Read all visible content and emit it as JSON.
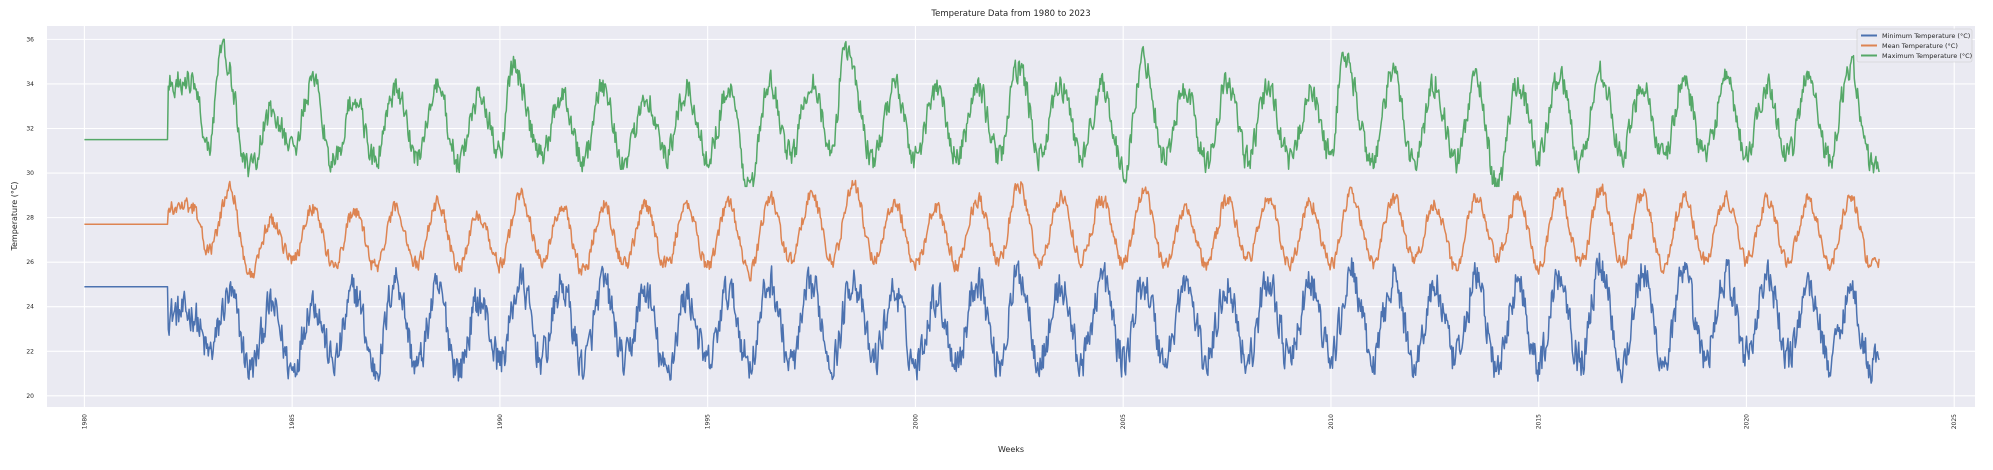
{
  "chart_data": {
    "type": "line",
    "title": "Temperature Data from 1980 to 2023",
    "xlabel": "Weeks",
    "ylabel": "Temperature (°C)",
    "xlim": [
      1979.1,
      2025.5
    ],
    "ylim": [
      19.5,
      36.6
    ],
    "x_ticks": [
      1980,
      1985,
      1990,
      1995,
      2000,
      2005,
      2010,
      2015,
      2020,
      2025
    ],
    "y_ticks": [
      20,
      22,
      24,
      26,
      28,
      30,
      32,
      34,
      36
    ],
    "grid": true,
    "style": "seaborn darkgrid",
    "legend_position": "top-right",
    "time_resolution": "weekly",
    "flat_period": [
      1980.0,
      1982.0
    ],
    "data_end": 2023.2,
    "series": [
      {
        "name": "Minimum Temperature (°C)",
        "color": "#4c72b0",
        "flat_value": 24.9,
        "mean": 23.5,
        "range": [
          20.2,
          27.2
        ],
        "summer_peaks": [
          [
            1982.6,
            24.0
          ],
          [
            1983.5,
            24.8
          ],
          [
            1984.5,
            24.3
          ],
          [
            1985.5,
            24.6
          ],
          [
            1986.5,
            25.0
          ],
          [
            1987.5,
            25.6
          ],
          [
            1988.5,
            25.0
          ],
          [
            1989.5,
            24.6
          ],
          [
            1990.5,
            25.4
          ],
          [
            1991.5,
            25.2
          ],
          [
            1992.5,
            25.3
          ],
          [
            1993.5,
            25.0
          ],
          [
            1994.5,
            24.8
          ],
          [
            1995.5,
            25.0
          ],
          [
            1996.5,
            25.4
          ],
          [
            1997.5,
            25.2
          ],
          [
            1998.5,
            25.6
          ],
          [
            1999.5,
            25.0
          ],
          [
            2000.5,
            24.8
          ],
          [
            2001.5,
            25.6
          ],
          [
            2002.5,
            25.8
          ],
          [
            2003.5,
            25.2
          ],
          [
            2004.5,
            25.6
          ],
          [
            2005.5,
            25.4
          ],
          [
            2006.5,
            25.3
          ],
          [
            2007.5,
            25.3
          ],
          [
            2008.5,
            25.5
          ],
          [
            2009.5,
            25.3
          ],
          [
            2010.5,
            25.8
          ],
          [
            2011.5,
            25.6
          ],
          [
            2012.5,
            25.2
          ],
          [
            2013.5,
            25.6
          ],
          [
            2014.5,
            25.4
          ],
          [
            2015.5,
            25.8
          ],
          [
            2016.5,
            26.2
          ],
          [
            2017.5,
            25.8
          ],
          [
            2018.5,
            25.6
          ],
          [
            2019.5,
            25.7
          ],
          [
            2020.5,
            25.6
          ],
          [
            2021.5,
            25.2
          ],
          [
            2022.5,
            25.0
          ]
        ],
        "winter_troughs": [
          [
            1983.0,
            22.2
          ],
          [
            1984.0,
            21.5
          ],
          [
            1985.0,
            21.5
          ],
          [
            1986.0,
            21.8
          ],
          [
            1987.0,
            21.5
          ],
          [
            1988.0,
            21.6
          ],
          [
            1989.0,
            21.5
          ],
          [
            1990.0,
            21.9
          ],
          [
            1991.0,
            22.0
          ],
          [
            1992.0,
            21.7
          ],
          [
            1993.0,
            21.8
          ],
          [
            1994.0,
            21.3
          ],
          [
            1995.0,
            21.7
          ],
          [
            1996.0,
            21.8
          ],
          [
            1997.0,
            21.7
          ],
          [
            1998.0,
            21.9
          ],
          [
            1999.0,
            21.9
          ],
          [
            2000.0,
            21.7
          ],
          [
            2001.0,
            21.9
          ],
          [
            2002.0,
            21.8
          ],
          [
            2003.0,
            21.9
          ],
          [
            2004.0,
            21.8
          ],
          [
            2005.0,
            21.9
          ],
          [
            2006.0,
            21.9
          ],
          [
            2007.0,
            21.9
          ],
          [
            2008.0,
            21.9
          ],
          [
            2009.0,
            21.9
          ],
          [
            2010.0,
            22.0
          ],
          [
            2011.0,
            21.8
          ],
          [
            2012.0,
            21.8
          ],
          [
            2013.0,
            21.8
          ],
          [
            2014.0,
            21.4
          ],
          [
            2015.0,
            21.7
          ],
          [
            2016.0,
            21.9
          ],
          [
            2017.0,
            21.7
          ],
          [
            2018.0,
            21.8
          ],
          [
            2019.0,
            21.9
          ],
          [
            2020.0,
            22.2
          ],
          [
            2021.0,
            22.0
          ],
          [
            2022.0,
            21.9
          ],
          [
            2023.0,
            21.7
          ]
        ]
      },
      {
        "name": "Mean Temperature (°C)",
        "color": "#dd8452",
        "flat_value": 27.7,
        "mean": 27.5,
        "range": [
          24.9,
          30.2
        ],
        "summer_peaks": [
          [
            1982.6,
            28.6
          ],
          [
            1983.5,
            29.4
          ],
          [
            1984.5,
            28.0
          ],
          [
            1985.5,
            28.6
          ],
          [
            1986.5,
            28.4
          ],
          [
            1987.5,
            28.5
          ],
          [
            1988.5,
            28.8
          ],
          [
            1989.5,
            28.3
          ],
          [
            1990.5,
            29.2
          ],
          [
            1991.5,
            28.6
          ],
          [
            1992.5,
            28.8
          ],
          [
            1993.5,
            28.6
          ],
          [
            1994.5,
            28.7
          ],
          [
            1995.5,
            28.8
          ],
          [
            1996.5,
            29.0
          ],
          [
            1997.5,
            29.2
          ],
          [
            1998.5,
            29.6
          ],
          [
            1999.5,
            28.8
          ],
          [
            2000.5,
            28.5
          ],
          [
            2001.5,
            29.0
          ],
          [
            2002.5,
            29.6
          ],
          [
            2003.5,
            29.1
          ],
          [
            2004.5,
            29.0
          ],
          [
            2005.5,
            29.2
          ],
          [
            2006.5,
            28.6
          ],
          [
            2007.5,
            28.9
          ],
          [
            2008.5,
            29.0
          ],
          [
            2009.5,
            28.8
          ],
          [
            2010.5,
            29.2
          ],
          [
            2011.5,
            29.0
          ],
          [
            2012.5,
            28.8
          ],
          [
            2013.5,
            29.0
          ],
          [
            2014.5,
            29.0
          ],
          [
            2015.5,
            29.3
          ],
          [
            2016.5,
            29.4
          ],
          [
            2017.5,
            29.2
          ],
          [
            2018.5,
            29.0
          ],
          [
            2019.5,
            29.0
          ],
          [
            2020.5,
            28.9
          ],
          [
            2021.5,
            29.0
          ],
          [
            2022.5,
            29.0
          ]
        ],
        "winter_troughs": [
          [
            1983.0,
            26.6
          ],
          [
            1984.0,
            25.5
          ],
          [
            1985.0,
            26.2
          ],
          [
            1986.0,
            25.9
          ],
          [
            1987.0,
            25.9
          ],
          [
            1988.0,
            26.0
          ],
          [
            1989.0,
            26.0
          ],
          [
            1990.0,
            26.0
          ],
          [
            1991.0,
            26.2
          ],
          [
            1992.0,
            25.7
          ],
          [
            1993.0,
            26.0
          ],
          [
            1994.0,
            26.0
          ],
          [
            1995.0,
            26.0
          ],
          [
            1996.0,
            25.6
          ],
          [
            1997.0,
            26.2
          ],
          [
            1998.0,
            26.2
          ],
          [
            1999.0,
            26.3
          ],
          [
            2000.0,
            26.1
          ],
          [
            2001.0,
            26.0
          ],
          [
            2002.0,
            26.1
          ],
          [
            2003.0,
            26.1
          ],
          [
            2004.0,
            26.3
          ],
          [
            2005.0,
            26.1
          ],
          [
            2006.0,
            26.0
          ],
          [
            2007.0,
            26.0
          ],
          [
            2008.0,
            26.3
          ],
          [
            2009.0,
            26.0
          ],
          [
            2010.0,
            26.0
          ],
          [
            2011.0,
            26.1
          ],
          [
            2012.0,
            26.2
          ],
          [
            2013.0,
            25.9
          ],
          [
            2014.0,
            26.3
          ],
          [
            2015.0,
            26.0
          ],
          [
            2016.0,
            26.0
          ],
          [
            2017.0,
            26.1
          ],
          [
            2018.0,
            25.8
          ],
          [
            2019.0,
            26.2
          ],
          [
            2020.0,
            26.2
          ],
          [
            2021.0,
            26.2
          ],
          [
            2022.0,
            26.0
          ],
          [
            2023.0,
            26.0
          ]
        ]
      },
      {
        "name": "Maximum Temperature (°C)",
        "color": "#55a868",
        "flat_value": 31.5,
        "mean": 32.6,
        "range": [
          29.4,
          36.0
        ],
        "summer_peaks": [
          [
            1982.6,
            34.3
          ],
          [
            1983.3,
            35.8
          ],
          [
            1984.5,
            33.0
          ],
          [
            1985.5,
            34.2
          ],
          [
            1986.5,
            33.6
          ],
          [
            1987.5,
            33.9
          ],
          [
            1988.5,
            34.0
          ],
          [
            1989.5,
            33.6
          ],
          [
            1990.3,
            35.0
          ],
          [
            1991.5,
            33.8
          ],
          [
            1992.5,
            34.1
          ],
          [
            1993.5,
            33.8
          ],
          [
            1994.5,
            33.9
          ],
          [
            1995.5,
            34.0
          ],
          [
            1996.5,
            34.2
          ],
          [
            1997.5,
            34.5
          ],
          [
            1998.3,
            36.0
          ],
          [
            1999.5,
            34.2
          ],
          [
            2000.5,
            34.0
          ],
          [
            2001.5,
            34.1
          ],
          [
            2002.5,
            35.0
          ],
          [
            2003.5,
            34.2
          ],
          [
            2004.5,
            34.2
          ],
          [
            2005.5,
            35.3
          ],
          [
            2006.5,
            34.0
          ],
          [
            2007.5,
            34.3
          ],
          [
            2008.5,
            34.1
          ],
          [
            2009.5,
            33.8
          ],
          [
            2010.3,
            35.5
          ],
          [
            2011.5,
            34.7
          ],
          [
            2012.5,
            34.3
          ],
          [
            2013.5,
            34.5
          ],
          [
            2014.5,
            34.4
          ],
          [
            2015.5,
            34.6
          ],
          [
            2016.5,
            34.8
          ],
          [
            2017.5,
            34.3
          ],
          [
            2018.5,
            34.4
          ],
          [
            2019.5,
            34.3
          ],
          [
            2020.5,
            34.2
          ],
          [
            2021.5,
            34.6
          ],
          [
            2022.5,
            35.0
          ]
        ],
        "winter_troughs": [
          [
            1983.0,
            31.4
          ],
          [
            1984.0,
            30.3
          ],
          [
            1985.0,
            31.3
          ],
          [
            1986.0,
            30.6
          ],
          [
            1987.0,
            30.8
          ],
          [
            1988.0,
            31.0
          ],
          [
            1989.0,
            30.7
          ],
          [
            1990.0,
            31.3
          ],
          [
            1991.0,
            31.0
          ],
          [
            1992.0,
            30.8
          ],
          [
            1993.0,
            30.5
          ],
          [
            1994.0,
            31.0
          ],
          [
            1995.0,
            31.0
          ],
          [
            1996.0,
            29.6
          ],
          [
            1997.0,
            31.0
          ],
          [
            1998.0,
            31.0
          ],
          [
            1999.0,
            30.8
          ],
          [
            2000.0,
            30.9
          ],
          [
            2001.0,
            30.9
          ],
          [
            2002.0,
            31.0
          ],
          [
            2003.0,
            31.0
          ],
          [
            2004.0,
            31.0
          ],
          [
            2005.0,
            30.3
          ],
          [
            2006.0,
            31.0
          ],
          [
            2007.0,
            30.7
          ],
          [
            2008.0,
            30.8
          ],
          [
            2009.0,
            30.7
          ],
          [
            2010.0,
            31.0
          ],
          [
            2011.0,
            30.8
          ],
          [
            2012.0,
            30.7
          ],
          [
            2013.0,
            30.7
          ],
          [
            2014.0,
            29.6
          ],
          [
            2015.0,
            31.0
          ],
          [
            2016.0,
            30.8
          ],
          [
            2017.0,
            31.0
          ],
          [
            2018.0,
            30.8
          ],
          [
            2019.0,
            30.9
          ],
          [
            2020.0,
            31.0
          ],
          [
            2021.0,
            30.9
          ],
          [
            2022.0,
            30.9
          ],
          [
            2023.0,
            30.7
          ]
        ]
      }
    ]
  }
}
